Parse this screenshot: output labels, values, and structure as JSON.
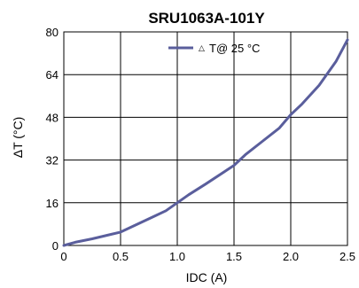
{
  "chart_data": {
    "type": "line",
    "title": "SRU1063A-101Y",
    "xlabel": "IDC (A)",
    "ylabel": "ΔT  (°C)",
    "xlim": [
      0,
      2.5
    ],
    "ylim": [
      0,
      80
    ],
    "x_ticks": [
      "0",
      "0.5",
      "1.0",
      "1.5",
      "2.0",
      "2.5"
    ],
    "y_ticks": [
      "0",
      "16",
      "32",
      "48",
      "64",
      "80"
    ],
    "grid": true,
    "legend_position": "top-right",
    "series": [
      {
        "name": "T@ 25 °C",
        "legend_marker": "△",
        "color": "#5a5e9c",
        "x": [
          0,
          0.1,
          0.25,
          0.5,
          0.6,
          0.8,
          0.9,
          1.0,
          1.1,
          1.25,
          1.5,
          1.6,
          1.75,
          1.9,
          2.0,
          2.1,
          2.25,
          2.4,
          2.5
        ],
        "y": [
          0,
          1.2,
          2.5,
          5,
          7,
          11,
          13,
          16,
          19,
          23,
          30,
          34,
          39,
          44,
          49,
          53,
          60,
          69,
          77
        ]
      }
    ]
  }
}
